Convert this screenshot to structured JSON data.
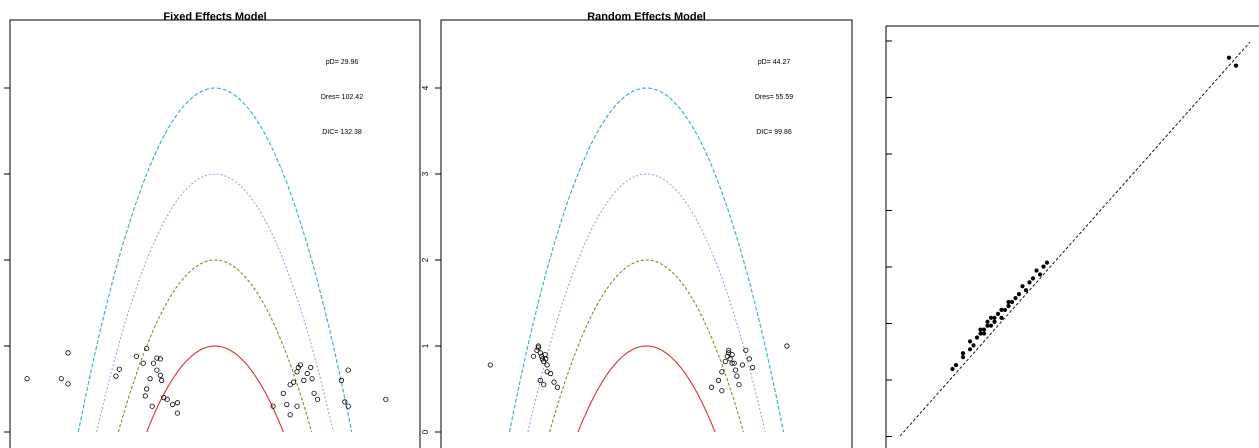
{
  "chart_data": [
    {
      "type": "scatter",
      "title": "Fixed Effects Model",
      "xlabel": "",
      "ylabel": "",
      "ylim": [
        0,
        5
      ],
      "xlim": [
        -3,
        3
      ],
      "reference_parabolas": {
        "levels": [
          1,
          2,
          3,
          4
        ],
        "colors": [
          "#e03030",
          "#6a9a10",
          "#b09ae0",
          "#2aaed0"
        ]
      },
      "stats": [
        "pD= 29.96",
        "Dres= 102.42",
        "DIC= 132.38"
      ],
      "points": [
        [
          -2.75,
          0.62
        ],
        [
          -2.25,
          0.62
        ],
        [
          -2.15,
          0.92
        ],
        [
          -2.15,
          0.56
        ],
        [
          -1.45,
          0.65
        ],
        [
          -1.4,
          0.73
        ],
        [
          -1.15,
          0.88
        ],
        [
          -1.05,
          0.8
        ],
        [
          -1.0,
          0.97
        ],
        [
          -0.95,
          0.62
        ],
        [
          -0.9,
          0.8
        ],
        [
          -0.85,
          0.86
        ],
        [
          -0.85,
          0.72
        ],
        [
          -0.8,
          0.66
        ],
        [
          -0.78,
          0.6
        ],
        [
          -1.0,
          0.5
        ],
        [
          -1.02,
          0.42
        ],
        [
          -0.92,
          0.3
        ],
        [
          -0.75,
          0.4
        ],
        [
          -0.7,
          0.38
        ],
        [
          -0.62,
          0.32
        ],
        [
          -0.55,
          0.34
        ],
        [
          -0.55,
          0.22
        ],
        [
          -0.8,
          0.85
        ],
        [
          0.85,
          0.3
        ],
        [
          1.0,
          0.45
        ],
        [
          1.05,
          0.32
        ],
        [
          1.1,
          0.55
        ],
        [
          1.15,
          0.58
        ],
        [
          1.2,
          0.7
        ],
        [
          1.22,
          0.75
        ],
        [
          1.25,
          0.78
        ],
        [
          1.3,
          0.6
        ],
        [
          1.35,
          0.68
        ],
        [
          1.4,
          0.75
        ],
        [
          1.45,
          0.45
        ],
        [
          1.5,
          0.38
        ],
        [
          1.1,
          0.2
        ],
        [
          1.85,
          0.6
        ],
        [
          1.9,
          0.35
        ],
        [
          1.95,
          0.72
        ],
        [
          1.95,
          0.3
        ],
        [
          2.5,
          0.38
        ],
        [
          1.2,
          0.3
        ],
        [
          1.42,
          0.62
        ]
      ]
    },
    {
      "type": "scatter",
      "title": "Random Effects Model",
      "xlabel": "",
      "ylabel": "",
      "ylim": [
        0,
        5
      ],
      "xlim": [
        -3,
        3
      ],
      "ytick_labels": [
        "0",
        "1",
        "2",
        "3",
        "4"
      ],
      "reference_parabolas": {
        "levels": [
          1,
          2,
          3,
          4
        ],
        "colors": [
          "#e03030",
          "#6a9a10",
          "#b09ae0",
          "#2aaed0"
        ]
      },
      "stats": [
        "pD= 44.27",
        "Dres= 55.59",
        "DIC= 99.86"
      ],
      "points": [
        [
          -2.28,
          0.78
        ],
        [
          -1.65,
          0.88
        ],
        [
          -1.6,
          0.95
        ],
        [
          -1.58,
          1.0
        ],
        [
          -1.55,
          0.92
        ],
        [
          -1.52,
          0.85
        ],
        [
          -1.5,
          0.82
        ],
        [
          -1.48,
          0.9
        ],
        [
          -1.45,
          0.78
        ],
        [
          -1.55,
          0.6
        ],
        [
          -1.5,
          0.55
        ],
        [
          -1.45,
          0.7
        ],
        [
          -1.4,
          0.68
        ],
        [
          -1.35,
          0.58
        ],
        [
          -1.3,
          0.52
        ],
        [
          -1.58,
          0.98
        ],
        [
          -1.53,
          0.88
        ],
        [
          -1.47,
          0.85
        ],
        [
          0.95,
          0.52
        ],
        [
          1.05,
          0.6
        ],
        [
          1.1,
          0.7
        ],
        [
          1.15,
          0.82
        ],
        [
          1.18,
          0.88
        ],
        [
          1.2,
          0.92
        ],
        [
          1.22,
          0.85
        ],
        [
          1.25,
          0.9
        ],
        [
          1.28,
          0.8
        ],
        [
          1.3,
          0.72
        ],
        [
          1.32,
          0.65
        ],
        [
          1.35,
          0.55
        ],
        [
          1.4,
          0.78
        ],
        [
          1.45,
          0.95
        ],
        [
          1.5,
          0.85
        ],
        [
          1.55,
          0.75
        ],
        [
          1.1,
          0.48
        ],
        [
          2.05,
          1.0
        ],
        [
          1.2,
          0.95
        ],
        [
          1.25,
          0.8
        ]
      ]
    },
    {
      "type": "scatter",
      "title": "",
      "xlabel": "",
      "ylabel": "",
      "xlim": [
        0,
        100
      ],
      "ylim": [
        0,
        100
      ],
      "reference_line": "y = x (dashed)",
      "points": [
        [
          15,
          17
        ],
        [
          16,
          18
        ],
        [
          18,
          20
        ],
        [
          18,
          21
        ],
        [
          20,
          22
        ],
        [
          20,
          24
        ],
        [
          21,
          23
        ],
        [
          22,
          25
        ],
        [
          23,
          26
        ],
        [
          24,
          27
        ],
        [
          24,
          26
        ],
        [
          25,
          28
        ],
        [
          25,
          29
        ],
        [
          26,
          28
        ],
        [
          27,
          30
        ],
        [
          27,
          29
        ],
        [
          28,
          31
        ],
        [
          29,
          30
        ],
        [
          30,
          32
        ],
        [
          31,
          33
        ],
        [
          32,
          34
        ],
        [
          33,
          35
        ],
        [
          34,
          36
        ],
        [
          35,
          38
        ],
        [
          36,
          37
        ],
        [
          37,
          39
        ],
        [
          38,
          40
        ],
        [
          39,
          42
        ],
        [
          40,
          41
        ],
        [
          41,
          43
        ],
        [
          42,
          44
        ],
        [
          23,
          27
        ],
        [
          26,
          30
        ],
        [
          29,
          32
        ],
        [
          31,
          34
        ],
        [
          94,
          96
        ],
        [
          96,
          94
        ]
      ]
    }
  ]
}
